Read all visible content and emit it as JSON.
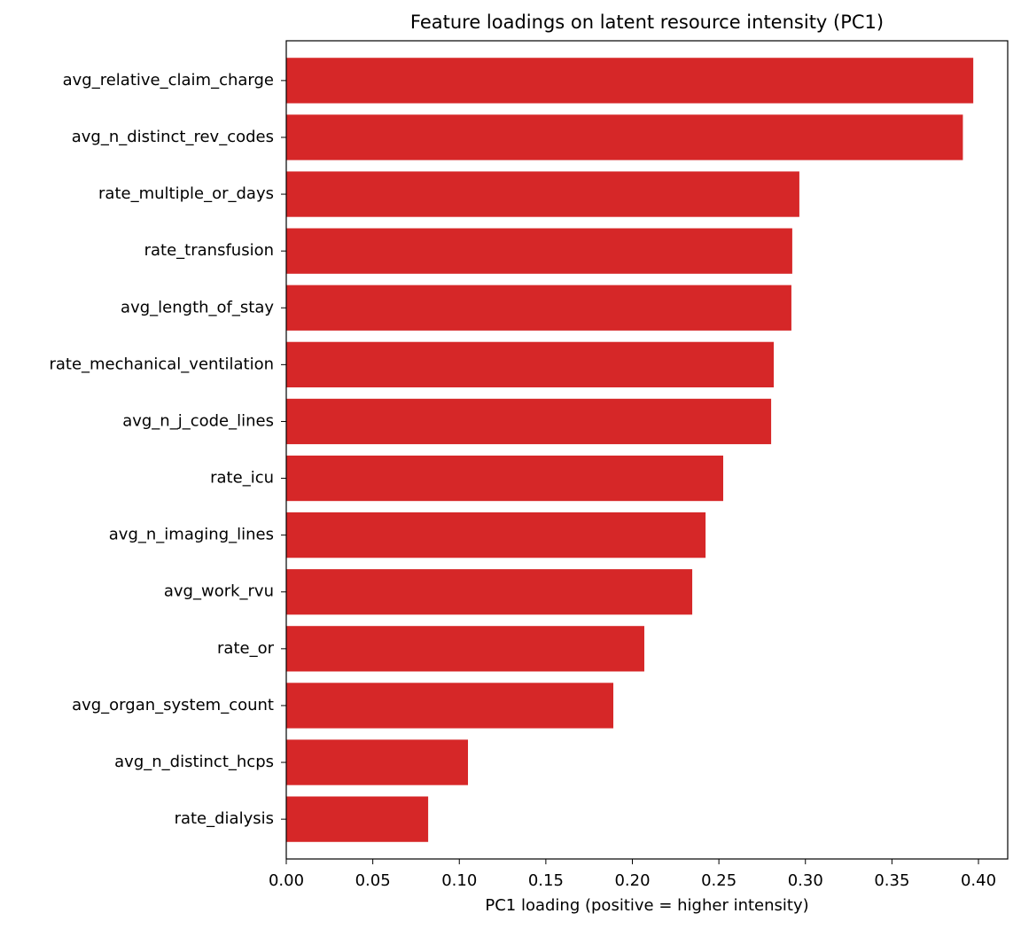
{
  "chart_data": {
    "type": "barh",
    "title": "Feature loadings on latent resource intensity (PC1)",
    "xlabel": "PC1 loading (positive = higher intensity)",
    "categories": [
      "avg_relative_claim_charge",
      "avg_n_distinct_rev_codes",
      "rate_multiple_or_days",
      "rate_transfusion",
      "avg_length_of_stay",
      "rate_mechanical_ventilation",
      "avg_n_j_code_lines",
      "rate_icu",
      "avg_n_imaging_lines",
      "avg_work_rvu",
      "rate_or",
      "avg_organ_system_count",
      "avg_n_distinct_hcps",
      "rate_dialysis"
    ],
    "values": [
      0.397,
      0.391,
      0.2965,
      0.2924,
      0.2919,
      0.2817,
      0.2802,
      0.2525,
      0.2423,
      0.2346,
      0.2069,
      0.189,
      0.105,
      0.082
    ],
    "color": "#d62728",
    "xlim": [
      0,
      0.4169
    ],
    "xticks": [
      {
        "value": 0,
        "label": "0.00"
      },
      {
        "value": 0.05,
        "label": "0.05"
      },
      {
        "value": 0.1,
        "label": "0.10"
      },
      {
        "value": 0.15,
        "label": "0.15"
      },
      {
        "value": 0.2,
        "label": "0.20"
      },
      {
        "value": 0.25,
        "label": "0.25"
      },
      {
        "value": 0.3,
        "label": "0.30"
      },
      {
        "value": 0.35,
        "label": "0.35"
      },
      {
        "value": 0.4,
        "label": "0.40"
      }
    ]
  }
}
